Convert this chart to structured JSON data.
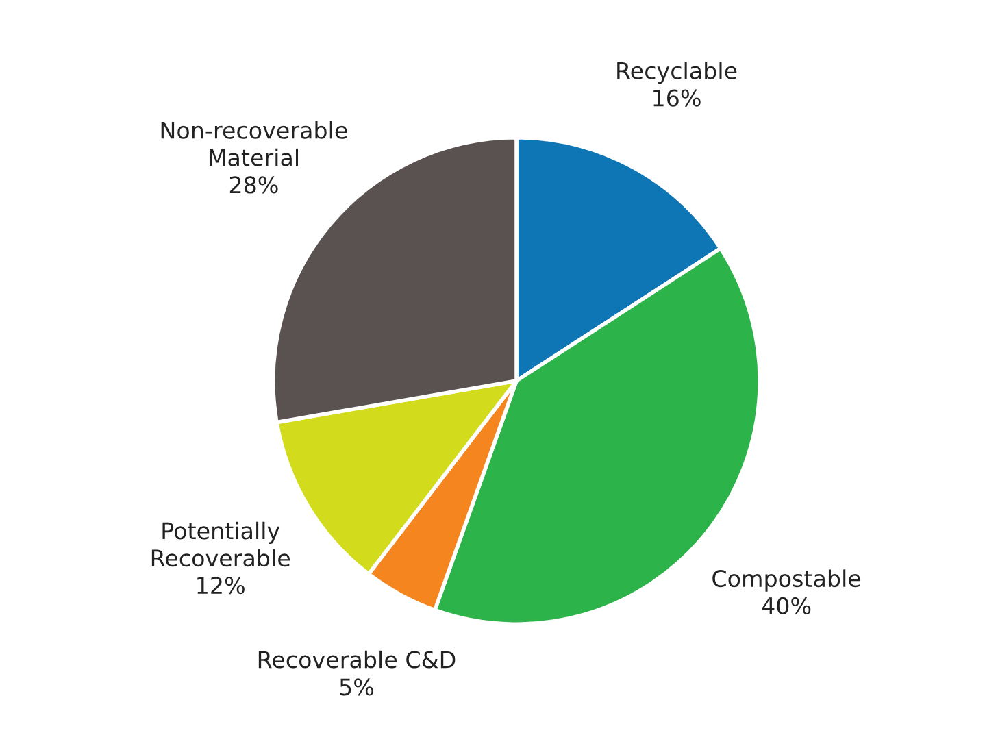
{
  "chart_data": {
    "type": "pie",
    "categories": [
      "Recyclable",
      "Compostable",
      "Recoverable C&D",
      "Potentially\nRecoverable",
      "Non-recoverable\nMaterial"
    ],
    "values": [
      16,
      40,
      5,
      12,
      28
    ],
    "value_labels": [
      "16%",
      "40%",
      "5%",
      "12%",
      "28%"
    ],
    "colors": [
      "#0f76b5",
      "#2cb34a",
      "#f5861f",
      "#d3dc1c",
      "#5a5250"
    ],
    "legend": false
  }
}
